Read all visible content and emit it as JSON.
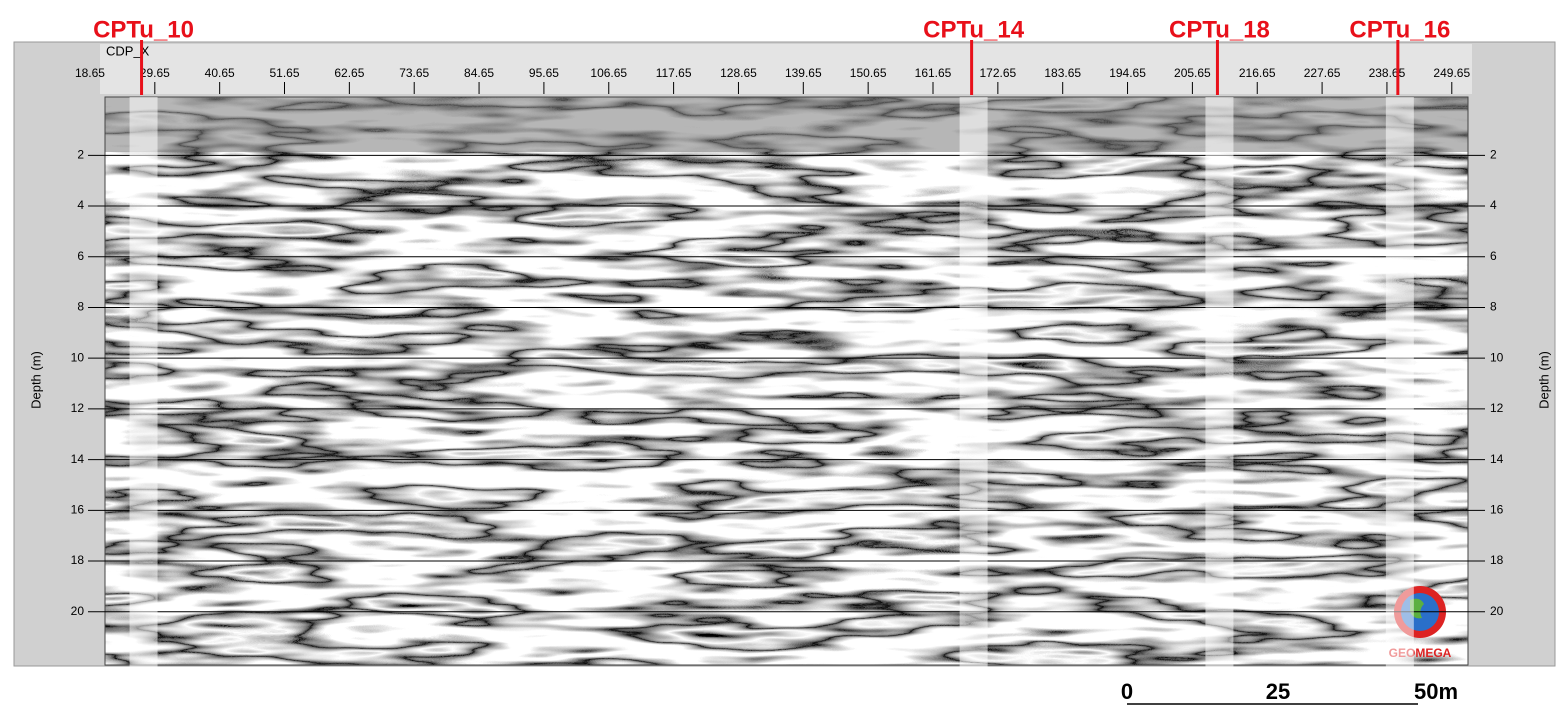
{
  "chart_data": {
    "type": "section",
    "x_label": "CDP_X",
    "y_label": "Depth (m)",
    "xlim": [
      21.2,
      252.4
    ],
    "xticks": [
      18.65,
      29.65,
      40.65,
      51.65,
      62.65,
      73.65,
      84.65,
      95.65,
      106.65,
      117.65,
      128.65,
      139.65,
      150.65,
      161.65,
      172.65,
      183.65,
      194.65,
      205.65,
      216.65,
      227.65,
      238.65,
      249.65
    ],
    "ylim": [
      -0.3,
      22.1
    ],
    "yticks": [
      2,
      4,
      6,
      8,
      10,
      12,
      14,
      16,
      18,
      20
    ],
    "grid": true,
    "annotation_color": "#e8101a",
    "annotations": [
      {
        "text": "CPTu_10",
        "x": 27.4
      },
      {
        "text": "CPTu_14",
        "x": 168.2
      },
      {
        "text": "CPTu_18",
        "x": 209.9
      },
      {
        "text": "CPTu_16",
        "x": 240.5
      }
    ],
    "scale_bar": [
      "0",
      "25",
      "50m"
    ],
    "logo": "GEOMEGA"
  }
}
